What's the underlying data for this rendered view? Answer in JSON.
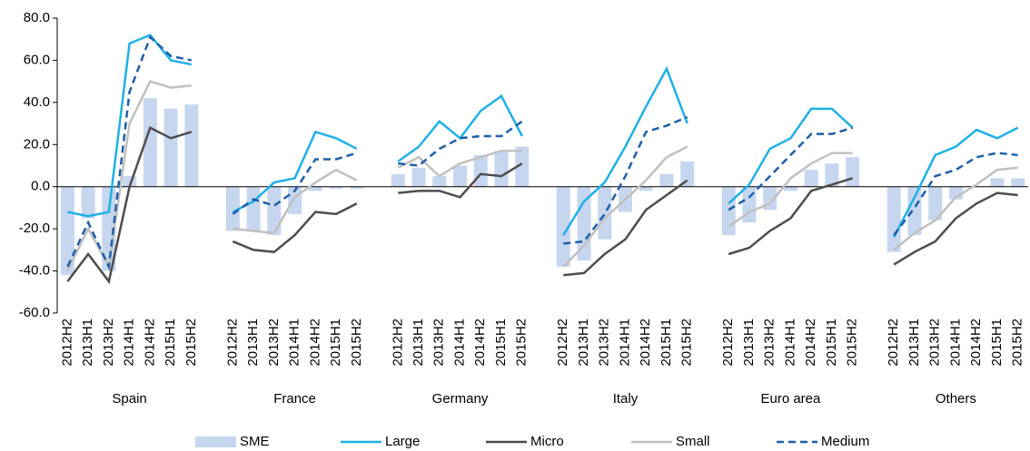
{
  "chart_data": {
    "type": "bar_line",
    "groups": [
      "Spain",
      "France",
      "Germany",
      "Italy",
      "Euro area",
      "Others"
    ],
    "categories": [
      "2012H2",
      "2013H1",
      "2013H2",
      "2014H1",
      "2014H2",
      "2015H1",
      "2015H2",
      "2012H2",
      "2013H1",
      "2013H2",
      "2014H1",
      "2014H2",
      "2015H1",
      "2015H2",
      "2012H2",
      "2013H1",
      "2013H2",
      "2014H1",
      "2014H2",
      "2015H1",
      "2015H2",
      "2012H2",
      "2013H1",
      "2013H2",
      "2014H1",
      "2014H2",
      "2015H1",
      "2015H2",
      "2012H2",
      "2013H1",
      "2013H2",
      "2014H1",
      "2014H2",
      "2015H1",
      "2015H2",
      "2012H2",
      "2013H1",
      "2013H2",
      "2014H1",
      "2014H2",
      "2015H1",
      "2015H2"
    ],
    "series": [
      {
        "name": "SME",
        "type": "bar",
        "color": "#c6d6ef",
        "values": [
          -42,
          -15,
          -40,
          5,
          42,
          37,
          39,
          -21,
          -21,
          -23,
          -13,
          -2,
          -1,
          -1,
          6,
          9,
          5,
          10,
          15,
          17,
          19,
          -38,
          -35,
          -25,
          -12,
          -2,
          6,
          12,
          -23,
          -17,
          -11,
          -2,
          8,
          11,
          14,
          -31,
          -23,
          -16,
          -6,
          0,
          4,
          4
        ]
      },
      {
        "name": "Large",
        "type": "line",
        "color": "#1fb0e6",
        "dash": false,
        "values": [
          -12,
          -14,
          -12,
          68,
          72,
          60,
          58,
          -12,
          -7,
          2,
          4,
          26,
          23,
          18,
          12,
          19,
          31,
          23,
          36,
          43,
          24,
          -23,
          -7,
          2,
          19,
          38,
          56,
          30,
          -8,
          1,
          18,
          23,
          37,
          37,
          28,
          -24,
          -5,
          15,
          19,
          27,
          23,
          28
        ]
      },
      {
        "name": "Micro",
        "type": "line",
        "color": "#4d4d4d",
        "dash": false,
        "values": [
          -45,
          -32,
          -45,
          0,
          28,
          23,
          26,
          -26,
          -30,
          -31,
          -23,
          -12,
          -13,
          -8,
          -3,
          -2,
          -2,
          -5,
          6,
          5,
          11,
          -42,
          -41,
          -32,
          -25,
          -11,
          -4,
          3,
          -32,
          -29,
          -21,
          -15,
          -2,
          1,
          4,
          -37,
          -31,
          -26,
          -15,
          -8,
          -3,
          -4
        ]
      },
      {
        "name": "Small",
        "type": "line",
        "color": "#c0c0c0",
        "dash": false,
        "values": [
          -40,
          -20,
          -38,
          30,
          50,
          47,
          48,
          -20,
          -21,
          -22,
          -5,
          2,
          8,
          3,
          9,
          14,
          5,
          11,
          14,
          17,
          17,
          -38,
          -28,
          -15,
          -6,
          3,
          14,
          19,
          -19,
          -12,
          -8,
          4,
          11,
          16,
          16,
          -30,
          -22,
          -16,
          -5,
          1,
          8,
          9
        ]
      },
      {
        "name": "Medium",
        "type": "line",
        "color": "#1f5fa8",
        "dash": true,
        "values": [
          -38,
          -17,
          -38,
          45,
          71,
          62,
          60,
          -13,
          -6,
          -9,
          -2,
          13,
          13,
          16,
          11,
          10,
          18,
          23,
          24,
          24,
          31,
          -27,
          -26,
          -13,
          5,
          26,
          29,
          33,
          -11,
          -5,
          5,
          15,
          25,
          25,
          28,
          -23,
          -10,
          5,
          8,
          14,
          16,
          15
        ]
      }
    ],
    "ylim": [
      -60,
      80
    ],
    "yticks": [
      {
        "value": -60,
        "label": "-60.0"
      },
      {
        "value": -40,
        "label": "-40.0"
      },
      {
        "value": -20,
        "label": "-20.0"
      },
      {
        "value": 0,
        "label": "0.0"
      },
      {
        "value": 20,
        "label": "20.0"
      },
      {
        "value": 40,
        "label": "40.0"
      },
      {
        "value": 60,
        "label": "60.0"
      },
      {
        "value": 80,
        "label": "80.0"
      }
    ],
    "legend": "bottom"
  }
}
